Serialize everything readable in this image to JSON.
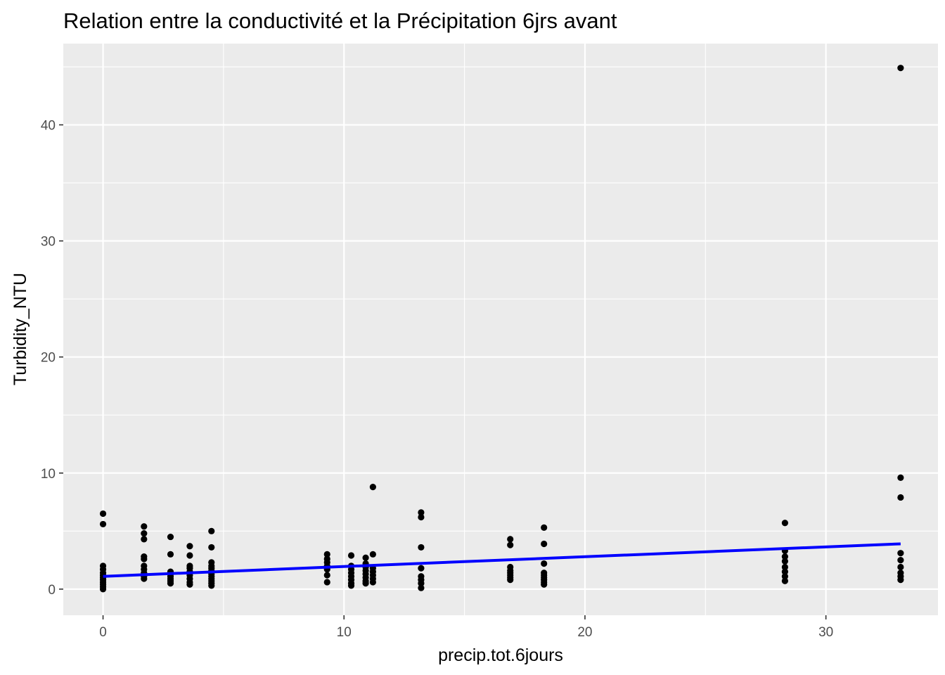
{
  "chart_data": {
    "type": "scatter",
    "title": "Relation entre la conductivité et la Précipitation 6jrs avant",
    "xlabel": "precip.tot.6jours",
    "ylabel": "Turbidity_NTU",
    "xlim": [
      -1.65,
      34.65
    ],
    "ylim": [
      -2.25,
      47.0
    ],
    "x_ticks": [
      0,
      10,
      20,
      30
    ],
    "y_ticks": [
      0,
      10,
      20,
      30,
      40
    ],
    "x_tick_labels": [
      "0",
      "10",
      "20",
      "30"
    ],
    "y_tick_labels": [
      "0",
      "10",
      "20",
      "30",
      "40"
    ],
    "grid": true,
    "panel_color": "#ebebeb",
    "point_color": "#000000",
    "trend_color": "#0000ff",
    "trend_line": {
      "x": [
        0,
        33.1
      ],
      "y": [
        1.1,
        3.9
      ]
    },
    "points": [
      [
        0,
        6.5
      ],
      [
        0,
        5.6
      ],
      [
        0,
        2.0
      ],
      [
        0,
        1.7
      ],
      [
        0,
        1.4
      ],
      [
        0,
        1.2
      ],
      [
        0,
        1.0
      ],
      [
        0,
        0.8
      ],
      [
        0,
        0.6
      ],
      [
        0,
        0.4
      ],
      [
        0,
        0.2
      ],
      [
        0,
        0.0
      ],
      [
        1.7,
        5.4
      ],
      [
        1.7,
        4.8
      ],
      [
        1.7,
        4.3
      ],
      [
        1.7,
        2.8
      ],
      [
        1.7,
        2.6
      ],
      [
        1.7,
        2.0
      ],
      [
        1.7,
        1.7
      ],
      [
        1.7,
        1.4
      ],
      [
        1.7,
        1.1
      ],
      [
        1.7,
        0.9
      ],
      [
        2.8,
        4.5
      ],
      [
        2.8,
        3.0
      ],
      [
        2.8,
        1.5
      ],
      [
        2.8,
        1.3
      ],
      [
        2.8,
        1.1
      ],
      [
        2.8,
        0.9
      ],
      [
        2.8,
        0.7
      ],
      [
        2.8,
        0.5
      ],
      [
        3.6,
        3.7
      ],
      [
        3.6,
        2.9
      ],
      [
        3.6,
        2.0
      ],
      [
        3.6,
        1.8
      ],
      [
        3.6,
        1.5
      ],
      [
        3.6,
        1.2
      ],
      [
        3.6,
        0.9
      ],
      [
        3.6,
        0.6
      ],
      [
        3.6,
        0.4
      ],
      [
        4.5,
        5.0
      ],
      [
        4.5,
        3.6
      ],
      [
        4.5,
        2.3
      ],
      [
        4.5,
        2.0
      ],
      [
        4.5,
        1.8
      ],
      [
        4.5,
        1.6
      ],
      [
        4.5,
        1.3
      ],
      [
        4.5,
        1.1
      ],
      [
        4.5,
        0.9
      ],
      [
        4.5,
        0.7
      ],
      [
        4.5,
        0.5
      ],
      [
        4.5,
        0.3
      ],
      [
        9.3,
        3.0
      ],
      [
        9.3,
        2.6
      ],
      [
        9.3,
        2.3
      ],
      [
        9.3,
        2.0
      ],
      [
        9.3,
        1.7
      ],
      [
        9.3,
        1.2
      ],
      [
        9.3,
        0.6
      ],
      [
        10.3,
        2.9
      ],
      [
        10.3,
        2.0
      ],
      [
        10.3,
        1.7
      ],
      [
        10.3,
        1.4
      ],
      [
        10.3,
        1.1
      ],
      [
        10.3,
        0.8
      ],
      [
        10.3,
        0.5
      ],
      [
        10.3,
        0.3
      ],
      [
        10.9,
        2.7
      ],
      [
        10.9,
        2.2
      ],
      [
        10.9,
        1.9
      ],
      [
        10.9,
        1.6
      ],
      [
        10.9,
        1.3
      ],
      [
        10.9,
        1.0
      ],
      [
        10.9,
        0.7
      ],
      [
        10.9,
        0.5
      ],
      [
        11.2,
        8.8
      ],
      [
        11.2,
        3.0
      ],
      [
        11.2,
        1.8
      ],
      [
        11.2,
        1.5
      ],
      [
        11.2,
        1.2
      ],
      [
        11.2,
        0.9
      ],
      [
        11.2,
        0.6
      ],
      [
        13.2,
        6.6
      ],
      [
        13.2,
        6.2
      ],
      [
        13.2,
        3.6
      ],
      [
        13.2,
        1.8
      ],
      [
        13.2,
        1.1
      ],
      [
        13.2,
        0.8
      ],
      [
        13.2,
        0.5
      ],
      [
        13.2,
        0.1
      ],
      [
        16.9,
        4.3
      ],
      [
        16.9,
        3.8
      ],
      [
        16.9,
        1.9
      ],
      [
        16.9,
        1.6
      ],
      [
        16.9,
        1.4
      ],
      [
        16.9,
        1.2
      ],
      [
        16.9,
        1.0
      ],
      [
        16.9,
        0.8
      ],
      [
        18.3,
        5.3
      ],
      [
        18.3,
        3.9
      ],
      [
        18.3,
        2.2
      ],
      [
        18.3,
        1.4
      ],
      [
        18.3,
        1.2
      ],
      [
        18.3,
        1.0
      ],
      [
        18.3,
        0.8
      ],
      [
        18.3,
        0.6
      ],
      [
        18.3,
        0.4
      ],
      [
        28.3,
        5.7
      ],
      [
        28.3,
        3.3
      ],
      [
        28.3,
        2.8
      ],
      [
        28.3,
        2.4
      ],
      [
        28.3,
        1.9
      ],
      [
        28.3,
        1.5
      ],
      [
        28.3,
        1.1
      ],
      [
        28.3,
        0.7
      ],
      [
        33.1,
        44.9
      ],
      [
        33.1,
        9.6
      ],
      [
        33.1,
        7.9
      ],
      [
        33.1,
        3.1
      ],
      [
        33.1,
        2.5
      ],
      [
        33.1,
        1.9
      ],
      [
        33.1,
        1.4
      ],
      [
        33.1,
        1.1
      ],
      [
        33.1,
        0.8
      ]
    ]
  }
}
